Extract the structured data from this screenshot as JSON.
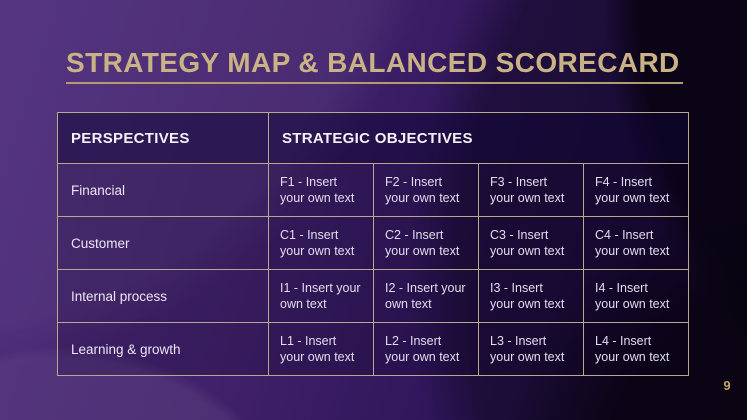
{
  "slide": {
    "title": "STRATEGY MAP & BALANCED SCORECARD",
    "page_number": "9"
  },
  "table": {
    "headers": [
      "PERSPECTIVES",
      "STRATEGIC OBJECTIVES"
    ],
    "rows": [
      {
        "label": "Financial",
        "cells": [
          "F1 - Insert\nyour own text",
          "F2 - Insert\nyour own text",
          "F3 - Insert\nyour own text",
          "F4 - Insert\nyour own text"
        ]
      },
      {
        "label": "Customer",
        "cells": [
          "C1 - Insert\nyour own text",
          "C2 - Insert\nyour own text",
          "C3 - Insert\nyour own text",
          "C4 - Insert\nyour own text"
        ]
      },
      {
        "label": "Internal process",
        "cells": [
          "I1 - Insert your\nown text",
          "I2 - Insert your\nown text",
          "I3 - Insert\nyour own text",
          "I4 - Insert\nyour own text"
        ]
      },
      {
        "label": "Learning & growth",
        "cells": [
          "L1 - Insert\nyour own text",
          "L2 - Insert\nyour own text",
          "L3 - Insert\nyour own text",
          "L4 - Insert\nyour own text"
        ]
      }
    ]
  },
  "colors": {
    "accent_gold": "#c9b286",
    "title_underline": "#b29b72",
    "table_border": "#bdb096",
    "header_text": "#f4f1f8",
    "cell_text": "#e2dbec",
    "page_number_gold": "#c2a45e",
    "background_purple": "#41216b",
    "background_dark": "#0a0416"
  }
}
